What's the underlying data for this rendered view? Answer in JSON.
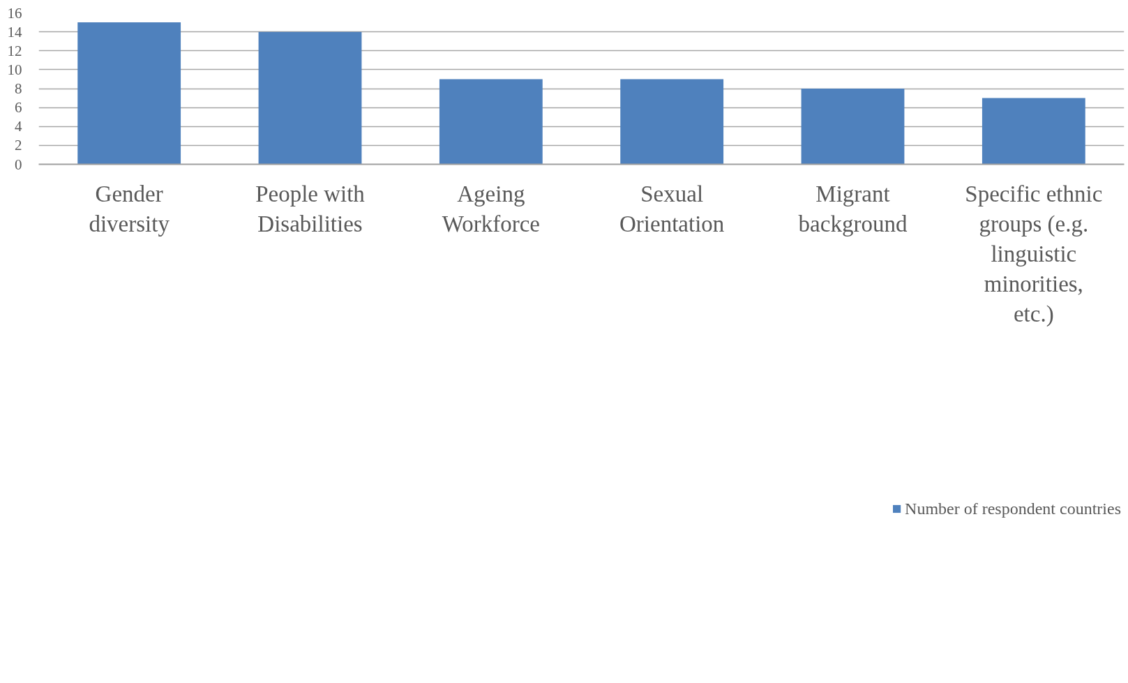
{
  "chart_data": {
    "type": "bar",
    "categories": [
      "Gender diversity",
      "People with Disabilities",
      "Ageing Workforce",
      "Sexual Orientation",
      "Migrant background",
      "Specific ethnic groups (e.g. linguistic minorities, etc.)"
    ],
    "series": [
      {
        "name": "Number of respondent countries",
        "color": "#4f81bd",
        "values": [
          15,
          14,
          9,
          9,
          8,
          7
        ]
      }
    ],
    "ylim": [
      0,
      16
    ],
    "yticks": [
      0,
      2,
      4,
      6,
      8,
      10,
      12,
      14,
      16
    ],
    "grid": "y",
    "legend": "bottom"
  }
}
